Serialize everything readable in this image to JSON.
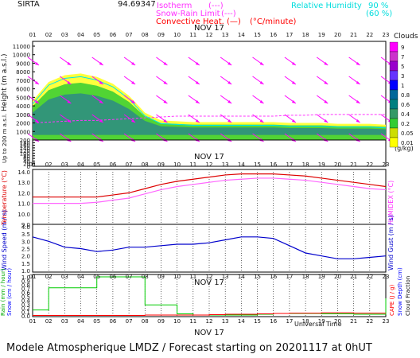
{
  "header": {
    "station": "SIRTA",
    "coords": "94.69347",
    "legend": [
      {
        "label": "Isotherm",
        "mark": "(---)",
        "color": "#ff33ff"
      },
      {
        "label": "Snow-Rain Limit",
        "mark": "(---)",
        "color": "#ff33ff"
      },
      {
        "label": "Convective Heat.",
        "mark": "(—)",
        "unit": "(°C/minute)",
        "color": "#ff0000"
      },
      {
        "label": "Relative Humidity",
        "v1": "90 %",
        "v2": "(60 %)",
        "color": "#00e5ee"
      }
    ]
  },
  "hours": [
    "01",
    "02",
    "03",
    "04",
    "05",
    "06",
    "07",
    "08",
    "09",
    "10",
    "11",
    "12",
    "13",
    "14",
    "15",
    "16",
    "17",
    "18",
    "19",
    "20",
    "21",
    "22",
    "23"
  ],
  "date_label": "NOV 17",
  "footer": {
    "text": "Modele Atmospherique LMDZ / Forecast starting on 20201117 at 0hUT",
    "universal_time": "Universal Time"
  },
  "clouds": {
    "title": "Clouds",
    "unit": "(g/kg)",
    "scale_labels": [
      "9",
      "7",
      "5",
      "3",
      "1",
      "0.8",
      "0.6",
      "0.4",
      "0.2",
      "0.05",
      "0.01"
    ],
    "scale_colors": [
      "#ff00ff",
      "#cc33cc",
      "#9900cc",
      "#6633ff",
      "#0000ff",
      "#006699",
      "#008080",
      "#339966",
      "#33cc33",
      "#ccdd00",
      "#ffff00"
    ]
  },
  "chart_data": [
    {
      "type": "area",
      "title": "Clouds",
      "ylabel": "Height (m a.s.l.)",
      "ylabel2": "Up to 200 m a.s.l.",
      "yticks": [
        11000,
        10000,
        9000,
        8000,
        7000,
        6000,
        5000,
        4000,
        3000,
        2000,
        1000,
        200,
        180,
        160,
        140,
        120,
        100,
        80,
        60,
        40,
        20,
        0
      ],
      "x": [
        "01",
        "02",
        "03",
        "04",
        "05",
        "06",
        "07",
        "08",
        "09",
        "10",
        "11",
        "12",
        "13",
        "14",
        "15",
        "16",
        "17",
        "18",
        "19",
        "20",
        "21",
        "22",
        "23"
      ],
      "cloud_top_m": [
        4600,
        6800,
        7600,
        7800,
        7400,
        6600,
        5200,
        3200,
        2300,
        2200,
        2100,
        2100,
        2100,
        2100,
        2100,
        2100,
        2000,
        2000,
        2000,
        1900,
        1900,
        1900,
        1800
      ],
      "isotherm_0_m": [
        2000,
        2100,
        2200,
        2300,
        2300,
        2400,
        2500,
        2600,
        2700,
        2800,
        2800,
        2800,
        2800,
        2800,
        2800,
        2800,
        2900,
        2900,
        3000,
        3000,
        3000,
        3000,
        3000
      ]
    },
    {
      "type": "line",
      "ylabel": "Temperature (°C)",
      "ylabel2": "HUMIDEX (°C)",
      "yticks": [
        14.0,
        13.0,
        12.0,
        11.0,
        10.0,
        9.0
      ],
      "ylim": [
        9.0,
        14.0
      ],
      "x": [
        "01",
        "02",
        "03",
        "04",
        "05",
        "06",
        "07",
        "08",
        "09",
        "10",
        "11",
        "12",
        "13",
        "14",
        "15",
        "16",
        "17",
        "18",
        "19",
        "20",
        "21",
        "22",
        "23"
      ],
      "series": [
        {
          "name": "Temperature",
          "color": "#dd0000",
          "values": [
            11.6,
            11.6,
            11.6,
            11.6,
            11.6,
            11.8,
            12.0,
            12.4,
            12.8,
            13.1,
            13.3,
            13.5,
            13.7,
            13.8,
            13.8,
            13.8,
            13.7,
            13.6,
            13.4,
            13.2,
            13.0,
            12.8,
            12.6
          ]
        },
        {
          "name": "Humidex",
          "color": "#ff66ff",
          "values": [
            11.0,
            11.0,
            11.0,
            11.0,
            11.1,
            11.3,
            11.5,
            11.9,
            12.3,
            12.6,
            12.8,
            13.0,
            13.2,
            13.3,
            13.4,
            13.4,
            13.3,
            13.2,
            13.0,
            12.8,
            12.6,
            12.4,
            12.3
          ]
        }
      ]
    },
    {
      "type": "line",
      "ylabel": "Wind Speed (m / s)",
      "ylabel2": "Wind Gust (m / s)",
      "yticks": [
        4.0,
        3.5,
        3.0,
        2.5,
        2.0,
        1.5,
        1.0
      ],
      "ylim": [
        1.0,
        4.0
      ],
      "x": [
        "01",
        "02",
        "03",
        "04",
        "05",
        "06",
        "07",
        "08",
        "09",
        "10",
        "11",
        "12",
        "13",
        "14",
        "15",
        "16",
        "17",
        "18",
        "19",
        "20",
        "21",
        "22",
        "23"
      ],
      "series": [
        {
          "name": "Wind Speed",
          "color": "#0000cc",
          "values": [
            3.3,
            3.0,
            2.6,
            2.5,
            2.3,
            2.4,
            2.6,
            2.6,
            2.7,
            2.8,
            2.8,
            2.9,
            3.1,
            3.3,
            3.3,
            3.2,
            2.7,
            2.2,
            2.0,
            1.8,
            1.8,
            1.9,
            2.0
          ]
        }
      ]
    },
    {
      "type": "bar",
      "ylabel": "Rain (mm / hour)",
      "ylabel2": "Snow (cm / hour)",
      "ylabel3": "CAPE (J / g)",
      "ylabel4": "Snow Depth (cm)",
      "ylabel5": "Cloud Fraction",
      "yticks": [
        1.0,
        0.9,
        0.8,
        0.7,
        0.6,
        0.5,
        0.4,
        0.3,
        0.2,
        0.1,
        0.0
      ],
      "ylim": [
        0.0,
        1.0
      ],
      "x": [
        "01",
        "02",
        "03",
        "04",
        "05",
        "06",
        "07",
        "08",
        "09",
        "10",
        "11",
        "12",
        "13",
        "14",
        "15",
        "16",
        "17",
        "18",
        "19",
        "20",
        "21",
        "22",
        "23"
      ],
      "series": [
        {
          "name": "Rain",
          "color": "#00cc00",
          "values": [
            0.15,
            0.72,
            0.72,
            0.72,
            1.0,
            1.0,
            1.0,
            0.28,
            0.28,
            0.05,
            0.02,
            0.02,
            0.02,
            0.02,
            0.04,
            0.06,
            0.06,
            0.06,
            0.05,
            0.05,
            0.04,
            0.04,
            0.45
          ]
        },
        {
          "name": "Cloud Fraction",
          "color": "#ff0000",
          "values": [
            0.01,
            0.01,
            0.01,
            0.01,
            0.01,
            0.01,
            0.01,
            0.02,
            0.02,
            0.02,
            0.02,
            0.03,
            0.04,
            0.04,
            0.05,
            0.06,
            0.07,
            0.07,
            0.08,
            0.08,
            0.07,
            0.07,
            0.07
          ]
        }
      ]
    }
  ]
}
